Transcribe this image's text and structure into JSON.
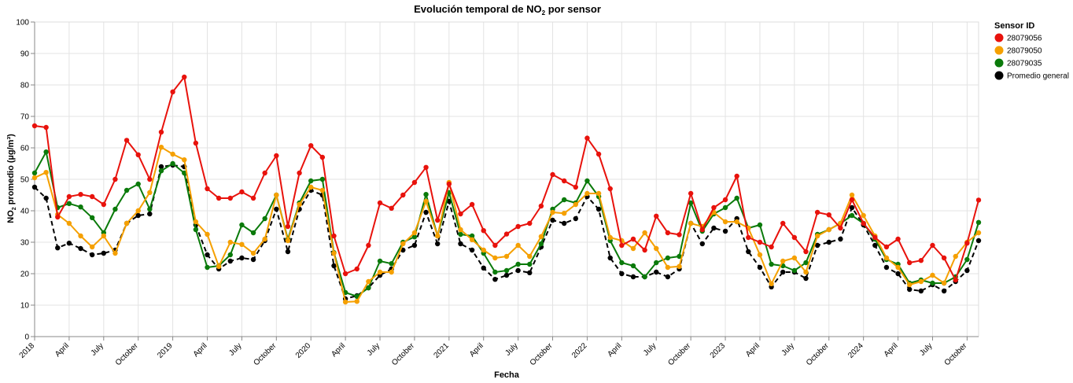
{
  "chart_data": {
    "type": "line",
    "title": {
      "prefix": "Evolución temporal de NO",
      "sub": "2",
      "suffix": " por sensor"
    },
    "xlabel": "Fecha",
    "ylabel": {
      "prefix": "NO",
      "sub": "2",
      "suffix": " promedio (µg/m³)"
    },
    "ylim": [
      0,
      100
    ],
    "yticks": [
      0,
      10,
      20,
      30,
      40,
      50,
      60,
      70,
      80,
      90,
      100
    ],
    "x_start": "2018-01",
    "x_end": "2024-11",
    "xticks": [
      {
        "date": "2018-01",
        "label": "2018"
      },
      {
        "date": "2018-04",
        "label": "April"
      },
      {
        "date": "2018-07",
        "label": "July"
      },
      {
        "date": "2018-10",
        "label": "October"
      },
      {
        "date": "2019-01",
        "label": "2019"
      },
      {
        "date": "2019-04",
        "label": "April"
      },
      {
        "date": "2019-07",
        "label": "July"
      },
      {
        "date": "2019-10",
        "label": "October"
      },
      {
        "date": "2020-01",
        "label": "2020"
      },
      {
        "date": "2020-04",
        "label": "April"
      },
      {
        "date": "2020-07",
        "label": "July"
      },
      {
        "date": "2020-10",
        "label": "October"
      },
      {
        "date": "2021-01",
        "label": "2021"
      },
      {
        "date": "2021-04",
        "label": "April"
      },
      {
        "date": "2021-07",
        "label": "July"
      },
      {
        "date": "2021-10",
        "label": "October"
      },
      {
        "date": "2022-01",
        "label": "2022"
      },
      {
        "date": "2022-04",
        "label": "April"
      },
      {
        "date": "2022-07",
        "label": "July"
      },
      {
        "date": "2022-10",
        "label": "October"
      },
      {
        "date": "2023-01",
        "label": "2023"
      },
      {
        "date": "2023-04",
        "label": "April"
      },
      {
        "date": "2023-07",
        "label": "July"
      },
      {
        "date": "2023-10",
        "label": "October"
      },
      {
        "date": "2024-01",
        "label": "2024"
      },
      {
        "date": "2024-04",
        "label": "April"
      },
      {
        "date": "2024-07",
        "label": "July"
      },
      {
        "date": "2024-10",
        "label": "October"
      }
    ],
    "x": [
      "2018-01",
      "2018-02",
      "2018-03",
      "2018-04",
      "2018-05",
      "2018-06",
      "2018-07",
      "2018-08",
      "2018-09",
      "2018-10",
      "2018-11",
      "2018-12",
      "2019-01",
      "2019-02",
      "2019-03",
      "2019-04",
      "2019-05",
      "2019-06",
      "2019-07",
      "2019-08",
      "2019-09",
      "2019-10",
      "2019-11",
      "2019-12",
      "2020-01",
      "2020-02",
      "2020-03",
      "2020-04",
      "2020-05",
      "2020-06",
      "2020-07",
      "2020-08",
      "2020-09",
      "2020-10",
      "2020-11",
      "2020-12",
      "2021-01",
      "2021-02",
      "2021-03",
      "2021-04",
      "2021-05",
      "2021-06",
      "2021-07",
      "2021-08",
      "2021-09",
      "2021-10",
      "2021-11",
      "2021-12",
      "2022-01",
      "2022-02",
      "2022-03",
      "2022-04",
      "2022-05",
      "2022-06",
      "2022-07",
      "2022-08",
      "2022-09",
      "2022-10",
      "2022-11",
      "2022-12",
      "2023-01",
      "2023-02",
      "2023-03",
      "2023-04",
      "2023-05",
      "2023-06",
      "2023-07",
      "2023-08",
      "2023-09",
      "2023-10",
      "2023-11",
      "2023-12",
      "2024-01",
      "2024-02",
      "2024-03",
      "2024-04",
      "2024-05",
      "2024-06",
      "2024-07",
      "2024-08",
      "2024-09",
      "2024-10",
      "2024-11"
    ],
    "series": [
      {
        "name": "28079056",
        "color": "#e8120c",
        "dashed": false,
        "values": [
          67,
          66.5,
          38,
          44.5,
          45.2,
          44.5,
          42,
          50,
          62.4,
          57.8,
          50,
          65,
          77.8,
          82.5,
          61.5,
          47,
          44,
          44,
          46,
          44,
          52,
          57.5,
          35,
          52,
          60.7,
          57,
          32,
          20,
          21.5,
          29,
          42.5,
          40.8,
          45,
          49,
          53.8,
          37,
          48.5,
          39,
          42,
          33.7,
          29,
          32.6,
          35,
          36,
          41.5,
          51.5,
          49.5,
          47.5,
          63.1,
          58,
          47,
          29,
          31,
          27.5,
          38.3,
          33,
          32.4,
          45.5,
          34,
          41,
          43.5,
          51,
          31.5,
          30,
          28.5,
          36,
          31.5,
          27,
          39.5,
          38.7,
          34.5,
          43.5,
          36,
          31.5,
          28.5,
          31,
          23.5,
          24.2,
          29,
          25,
          18,
          29.7,
          43.4
        ]
      },
      {
        "name": "28079050",
        "color": "#f5a000",
        "dashed": false,
        "values": [
          50.5,
          52.2,
          38.8,
          36,
          32,
          28.5,
          32,
          26.5,
          36,
          40,
          45.8,
          60.2,
          58,
          56.2,
          36.5,
          32.5,
          22.3,
          30,
          29.3,
          26.5,
          31,
          45,
          30.5,
          42,
          47.5,
          46.5,
          26.5,
          11,
          11.2,
          17.5,
          20.5,
          20.5,
          29.5,
          33,
          43,
          32,
          49,
          34,
          30.8,
          27.5,
          25,
          25.5,
          29,
          25.5,
          31.8,
          39.5,
          39.2,
          42,
          45.5,
          45.5,
          31.5,
          30.5,
          28,
          33,
          28,
          22,
          22.3,
          36,
          35,
          39.5,
          36.5,
          36.5,
          34.5,
          26,
          16.8,
          24,
          25,
          20.5,
          32,
          34,
          36,
          45,
          38.5,
          32,
          25,
          22,
          16.5,
          17.5,
          19.5,
          17,
          25.5,
          30,
          33
        ]
      },
      {
        "name": "28079035",
        "color": "#0a7a0a",
        "dashed": false,
        "values": [
          52,
          58.7,
          41,
          42.3,
          41.2,
          37.8,
          33,
          40.5,
          46.5,
          48.5,
          40.5,
          52.7,
          55,
          52,
          34,
          22,
          22.5,
          26,
          35.5,
          33,
          37.5,
          45,
          31,
          42.5,
          49.5,
          50,
          26.7,
          14,
          12.8,
          15.5,
          24,
          23.2,
          30,
          31.7,
          45.2,
          32,
          45.8,
          32.5,
          32,
          26.5,
          20.5,
          21,
          23,
          23,
          29.5,
          40.5,
          43.5,
          42.5,
          49.5,
          44.5,
          30.5,
          23.5,
          22.5,
          19,
          23.5,
          25,
          25.5,
          42.5,
          33.5,
          39,
          41,
          44,
          34.5,
          35.5,
          23,
          22.5,
          21,
          23.5,
          32.5,
          34,
          36,
          38.5,
          36,
          31,
          24.5,
          23,
          17,
          18,
          17,
          17,
          19,
          24.5,
          36.3
        ]
      },
      {
        "name": "Promedio general",
        "color": "#000000",
        "dashed": true,
        "values": [
          47.5,
          44,
          28.2,
          29.7,
          28,
          26,
          26.5,
          27.5,
          36,
          38.5,
          39,
          54,
          54.5,
          54,
          35.5,
          26,
          21.5,
          24,
          25,
          24.5,
          30.5,
          40.5,
          27,
          40.5,
          46.5,
          45,
          22.5,
          12,
          13,
          15.5,
          19.5,
          21.5,
          27.5,
          29,
          39.5,
          29.5,
          43,
          29.5,
          27.5,
          21.8,
          18.2,
          19.5,
          21,
          20.3,
          28.5,
          37,
          36,
          37.5,
          44.5,
          40.5,
          25,
          20,
          19,
          19,
          20.5,
          19,
          21.5,
          36,
          29.5,
          34.5,
          33.5,
          37.5,
          27,
          22,
          15.8,
          20.5,
          20.5,
          18.5,
          29,
          30,
          31,
          41,
          35.5,
          29,
          22,
          20,
          15,
          14.5,
          16.5,
          14.5,
          17.5,
          21,
          30.5
        ]
      }
    ],
    "grid": true,
    "legend": {
      "title": "Sensor ID",
      "position": "right"
    }
  }
}
